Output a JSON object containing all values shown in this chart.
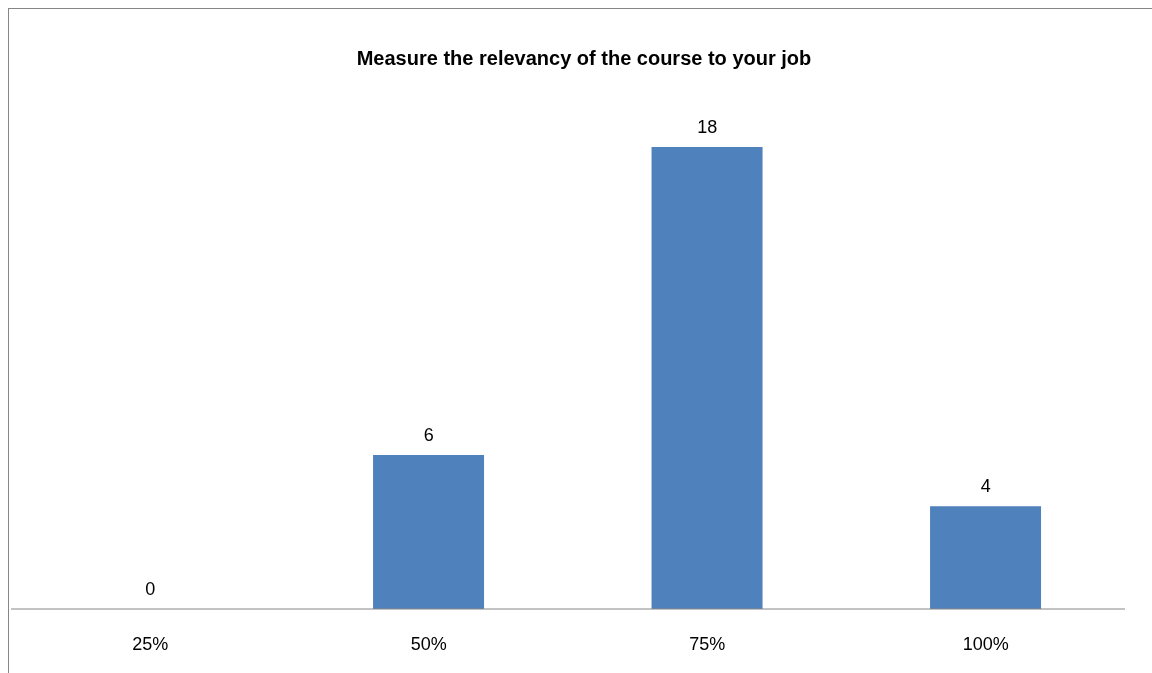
{
  "chart_data": {
    "type": "bar",
    "title": "Measure the relevancy of the course to your job",
    "categories": [
      "25%",
      "50%",
      "75%",
      "100%"
    ],
    "values": [
      0,
      6,
      18,
      4
    ],
    "color": "#4f81bd",
    "data_labels": true,
    "tick_labels": "x",
    "grid": false,
    "legend": false
  }
}
